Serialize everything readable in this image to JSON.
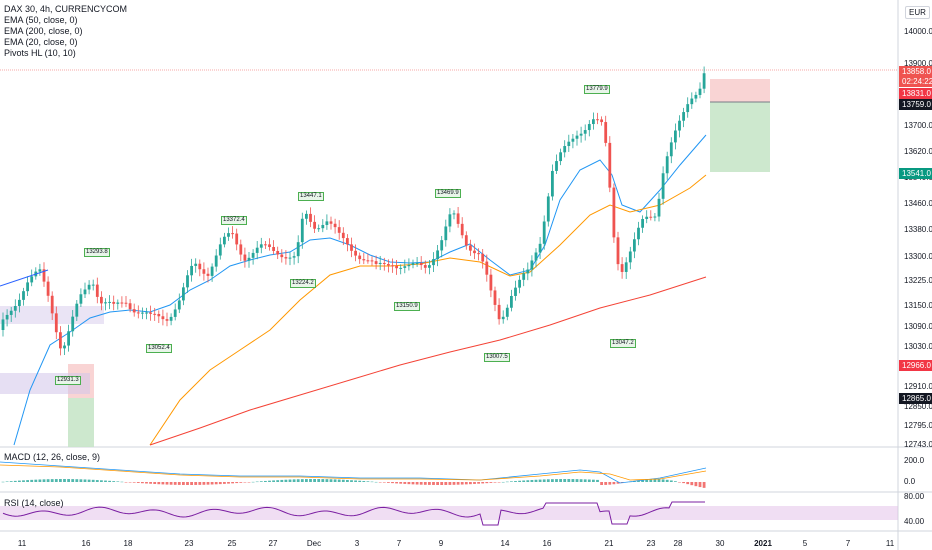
{
  "title": "DAX 30, 4h, CURRENCYCOM",
  "indicators": [
    "EMA (50, close, 0)",
    "EMA (200, close, 0)",
    "EMA (20, close, 0)",
    "Pivots HL (10, 10)"
  ],
  "currency": "EUR",
  "y_labels": [
    "14000.0",
    "13900.0",
    "13700.0",
    "13620.0",
    "13540.0",
    "13460.0",
    "13380.0",
    "13300.0",
    "13225.0",
    "13150.0",
    "13090.0",
    "13030.0",
    "12910.0",
    "12850.0",
    "12795.0",
    "12743.0"
  ],
  "price_tags": [
    {
      "text": "13858.0",
      "bg": "#ef5350"
    },
    {
      "text": "02:24:22",
      "bg": "#ef5350"
    },
    {
      "text": "13831.0",
      "bg": "#f23645"
    },
    {
      "text": "13759.0",
      "bg": "#131722"
    },
    {
      "text": "13541.0",
      "bg": "#089981"
    },
    {
      "text": "12966.0",
      "bg": "#f23645"
    },
    {
      "text": "12865.0",
      "bg": "#131722"
    }
  ],
  "pivot_labels": [
    "13293.8",
    "13372.4",
    "13447.1",
    "13469.9",
    "13779.9",
    "13224.2",
    "13150.9",
    "13052.4",
    "12931.3",
    "13007.5",
    "13047.2"
  ],
  "macd": {
    "label": "MACD (12, 26, close, 9)",
    "y_labels": [
      "200.0",
      "0.0"
    ]
  },
  "rsi": {
    "label": "RSI (14, close)",
    "y_labels": [
      "80.00",
      "40.00"
    ]
  },
  "x_labels": [
    "11",
    "16",
    "18",
    "23",
    "25",
    "27",
    "Dec",
    "3",
    "7",
    "9",
    "14",
    "16",
    "21",
    "23",
    "28",
    "30",
    "2021",
    "5",
    "7",
    "11"
  ],
  "chart_data": {
    "type": "candlestick",
    "title": "DAX 30, 4h, CURRENCYCOM",
    "series": [
      {
        "name": "EMA (20, close, 0)",
        "color": "#2196f3"
      },
      {
        "name": "EMA (50, close, 0)",
        "color": "#ff9800"
      },
      {
        "name": "EMA (200, close, 0)",
        "color": "#f44336"
      }
    ],
    "ylim": [
      12743,
      14000
    ],
    "last_price": 13858.0,
    "colors": {
      "up": "#26a69a",
      "down": "#ef5350",
      "rsi": "#7b1fa2",
      "macd": "#2196f3",
      "signal": "#ff9800"
    }
  }
}
